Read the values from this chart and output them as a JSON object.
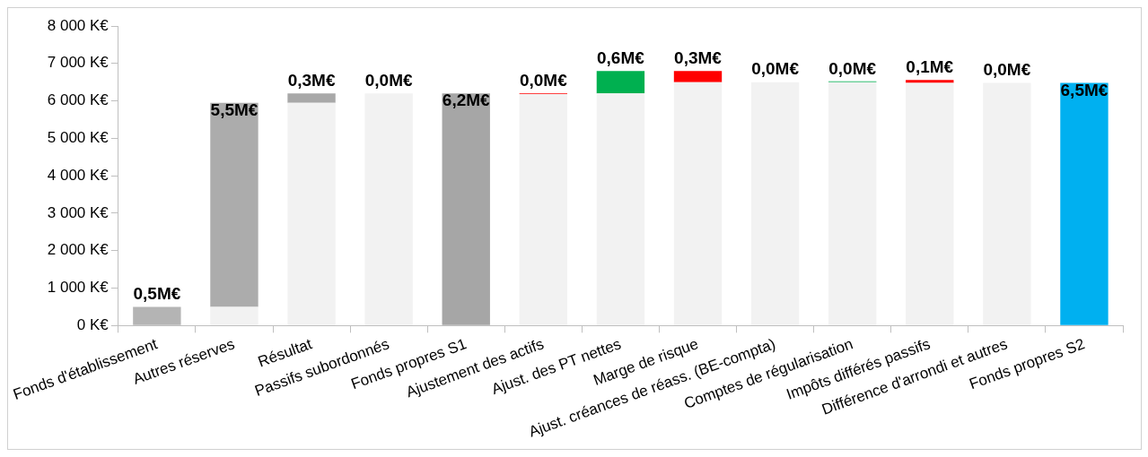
{
  "chart_data": {
    "type": "bar",
    "stacked": true,
    "categories": [
      "Fonds d'établissement",
      "Autres réserves",
      "Résultat",
      "Passifs subordonnés",
      "Fonds propres S1",
      "Ajustement des actifs",
      "Ajust. des PT nettes",
      "Marge de risque",
      "Ajust. créances de réass. (BE-compta)",
      "Comptes de régularisation",
      "Impôts différés passifs",
      "Différence d'arrondi et autres",
      "Fonds propres S2"
    ],
    "series": [
      {
        "color": "#f2f2f2",
        "values": [
          0,
          500,
          5950,
          6200,
          0,
          6180,
          6200,
          6500,
          6500,
          6500,
          6480,
          6480,
          0
        ]
      },
      {
        "colors": [
          "#b4b4b4",
          "#acacac",
          "#a8a8a8",
          "#a6a6a6",
          "#a6a6a6",
          "#ff0000",
          "#00b050",
          "#ff0000",
          "#00b050",
          "#00b050",
          "#ff0000",
          "#ff0000",
          "#00b0f0"
        ],
        "values": [
          500,
          5450,
          250,
          0,
          6200,
          20,
          600,
          300,
          0,
          20,
          80,
          0,
          6480
        ]
      }
    ],
    "annotations": [
      {
        "text": "0,5M€",
        "x": "Fonds d'établissement",
        "y": 500
      },
      {
        "text": "5,5M€",
        "x": "Autres réserves",
        "y": 5950
      },
      {
        "text": "0,3M€",
        "x": "Résultat",
        "y": 6200
      },
      {
        "text": "0,0M€",
        "x": "Passifs subordonnés",
        "y": 6200
      },
      {
        "text": "6,2M€",
        "x": "Fonds propres S1",
        "y": 6200
      },
      {
        "text": "0,0M€",
        "x": "Ajustement des actifs",
        "y": 6200
      },
      {
        "text": "0,6M€",
        "x": "Ajust. des PT nettes",
        "y": 6800
      },
      {
        "text": "0,3M€",
        "x": "Marge de risque",
        "y": 6800
      },
      {
        "text": "0,0M€",
        "x": "Ajust. créances de réass. (BE-compta)",
        "y": 6500
      },
      {
        "text": "0,0M€",
        "x": "Comptes de régularisation",
        "y": 6520
      },
      {
        "text": "0,1M€",
        "x": "Impôts différés passifs",
        "y": 6560
      },
      {
        "text": "0,0M€",
        "x": "Différence d'arrondi et autres",
        "y": 6480
      },
      {
        "text": "6,5M€",
        "x": "Fonds propres S2",
        "y": 6480
      }
    ],
    "ylim": [
      0,
      8000
    ],
    "yticks": [
      {
        "value": 0,
        "label": "0 K€"
      },
      {
        "value": 1000,
        "label": "1 000 K€"
      },
      {
        "value": 2000,
        "label": "2 000 K€"
      },
      {
        "value": 3000,
        "label": "3 000 K€"
      },
      {
        "value": 4000,
        "label": "4 000 K€"
      },
      {
        "value": 5000,
        "label": "5 000 K€"
      },
      {
        "value": 6000,
        "label": "6 000 K€"
      },
      {
        "value": 7000,
        "label": "7 000 K€"
      },
      {
        "value": 8000,
        "label": "8 000 K€"
      }
    ],
    "grid": false,
    "legend": false
  }
}
